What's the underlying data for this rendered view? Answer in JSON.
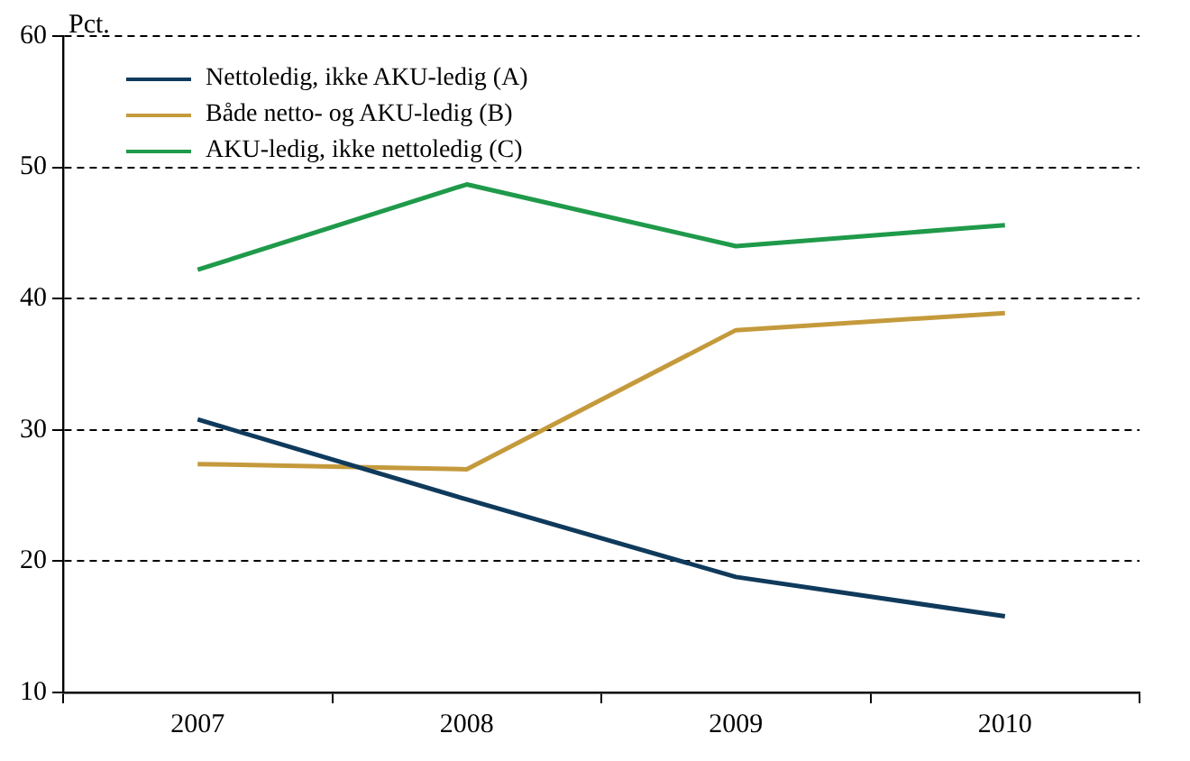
{
  "chart_data": {
    "type": "line",
    "ylabel": "Pct.",
    "categories": [
      "2007",
      "2008",
      "2009",
      "2010"
    ],
    "series": [
      {
        "name": "Nettoledig, ikke AKU-ledig (A)",
        "color": "#0f3a5c",
        "values": [
          30.8,
          24.7,
          18.8,
          15.8
        ]
      },
      {
        "name": "Både netto- og AKU-ledig (B)",
        "color": "#c49a3c",
        "values": [
          27.4,
          27.0,
          37.6,
          38.9
        ]
      },
      {
        "name": "AKU-ledig, ikke nettoledig (C)",
        "color": "#1f9a4a",
        "values": [
          42.2,
          48.7,
          44.0,
          45.6
        ]
      }
    ],
    "ylim": [
      10,
      60
    ],
    "yticks": [
      10,
      20,
      30,
      40,
      50,
      60
    ],
    "grid": "y",
    "legend": "top left",
    "marker": "none",
    "line_style": "solid"
  }
}
